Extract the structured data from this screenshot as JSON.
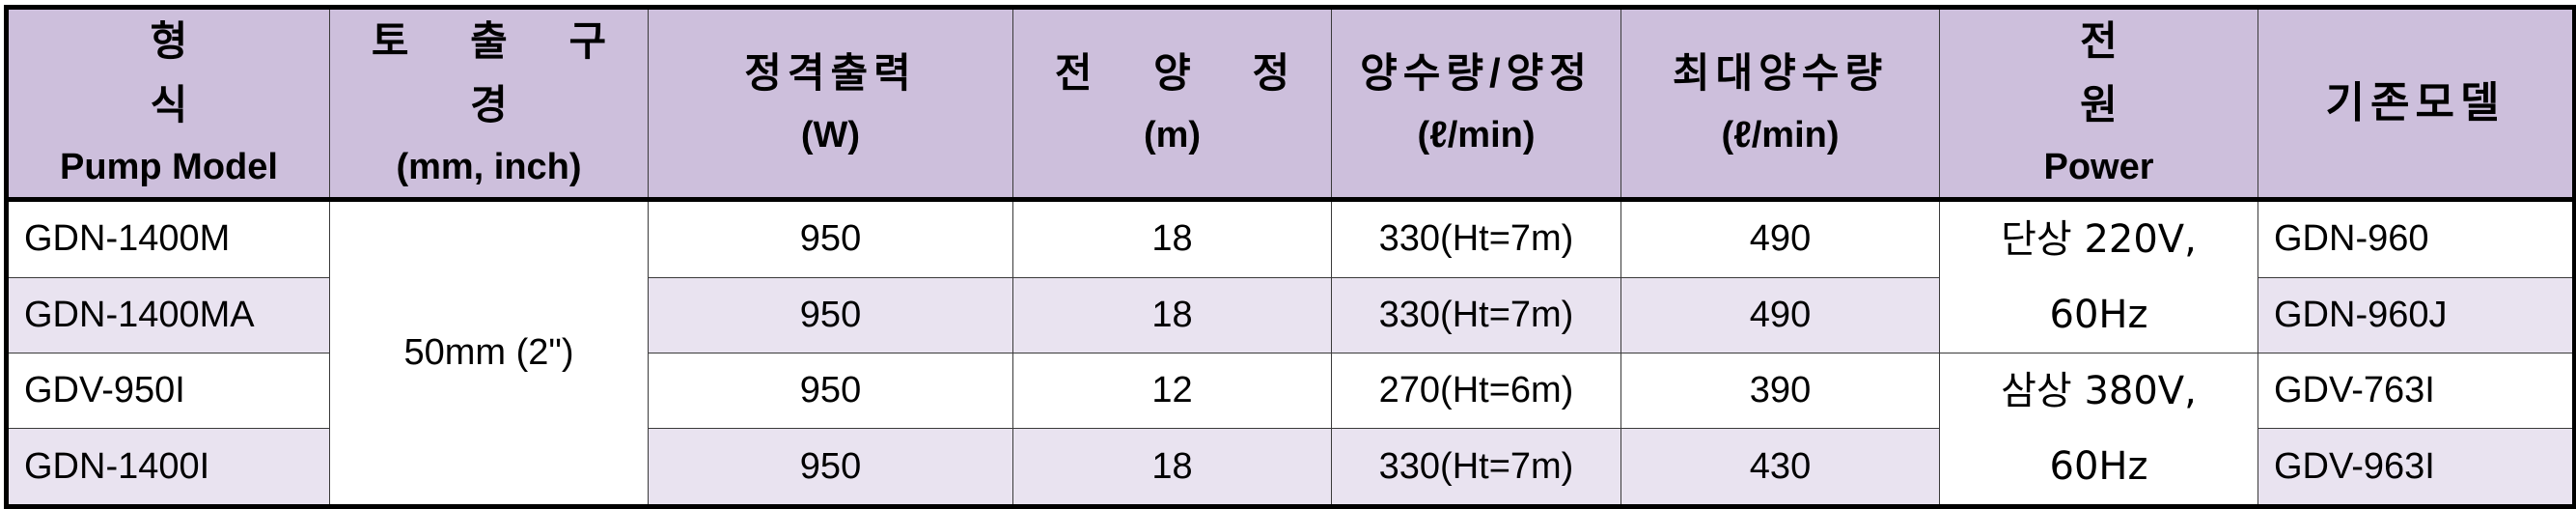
{
  "headers": [
    {
      "ko": "형 식",
      "en": "Pump Model"
    },
    {
      "ko": "토 출 구 경",
      "en": "(mm, inch)"
    },
    {
      "ko": "정격출력",
      "en": "(W)"
    },
    {
      "ko": "전 양 정",
      "en": "(m)"
    },
    {
      "ko": "양수량/양정",
      "en": "(ℓ/min)"
    },
    {
      "ko": "최대양수량",
      "en": "(ℓ/min)"
    },
    {
      "ko": "전 원",
      "en": "Power"
    },
    {
      "ko": "기존모델",
      "en": ""
    }
  ],
  "outlet_size": "50mm (2\")",
  "power": [
    {
      "line1": "단상 220V,",
      "line2": "60Hz"
    },
    {
      "line1": "삼상 380V,",
      "line2": "60Hz"
    }
  ],
  "rows": [
    {
      "model": "GDN-1400M",
      "output": "950",
      "head": "18",
      "flow": "330(Ht=7m)",
      "max_flow": "490",
      "old_model": "GDN-960"
    },
    {
      "model": "GDN-1400MA",
      "output": "950",
      "head": "18",
      "flow": "330(Ht=7m)",
      "max_flow": "490",
      "old_model": "GDN-960J"
    },
    {
      "model": "GDV-950I",
      "output": "950",
      "head": "12",
      "flow": "270(Ht=6m)",
      "max_flow": "390",
      "old_model": "GDV-763I"
    },
    {
      "model": "GDN-1400I",
      "output": "950",
      "head": "18",
      "flow": "330(Ht=7m)",
      "max_flow": "430",
      "old_model": "GDV-963I"
    }
  ]
}
